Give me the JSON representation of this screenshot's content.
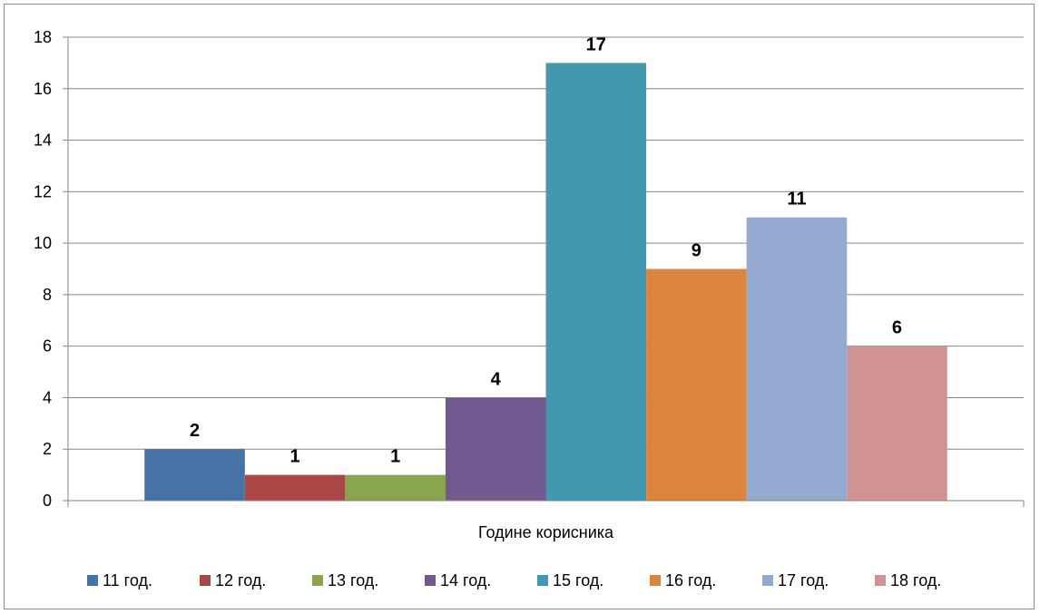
{
  "chart_data": {
    "type": "bar",
    "title": "",
    "xlabel": "Године корисника",
    "ylabel": "",
    "ylim": [
      0,
      18
    ],
    "yticks": [
      0,
      2,
      4,
      6,
      8,
      10,
      12,
      14,
      16,
      18
    ],
    "grid": true,
    "legend_position": "bottom",
    "categories": [
      "Године корисника"
    ],
    "series": [
      {
        "name": "11 год.",
        "values": [
          2
        ],
        "color": "#4572A7"
      },
      {
        "name": "12 год.",
        "values": [
          1
        ],
        "color": "#AA4643"
      },
      {
        "name": "13 год.",
        "values": [
          1
        ],
        "color": "#89A54E"
      },
      {
        "name": "14 год.",
        "values": [
          4
        ],
        "color": "#71588F"
      },
      {
        "name": "15 год.",
        "values": [
          17
        ],
        "color": "#4198AF"
      },
      {
        "name": "16 год.",
        "values": [
          9
        ],
        "color": "#DB843D"
      },
      {
        "name": "17 год.",
        "values": [
          11
        ],
        "color": "#93A9CF"
      },
      {
        "name": "18 год.",
        "values": [
          6
        ],
        "color": "#D19392"
      }
    ]
  }
}
